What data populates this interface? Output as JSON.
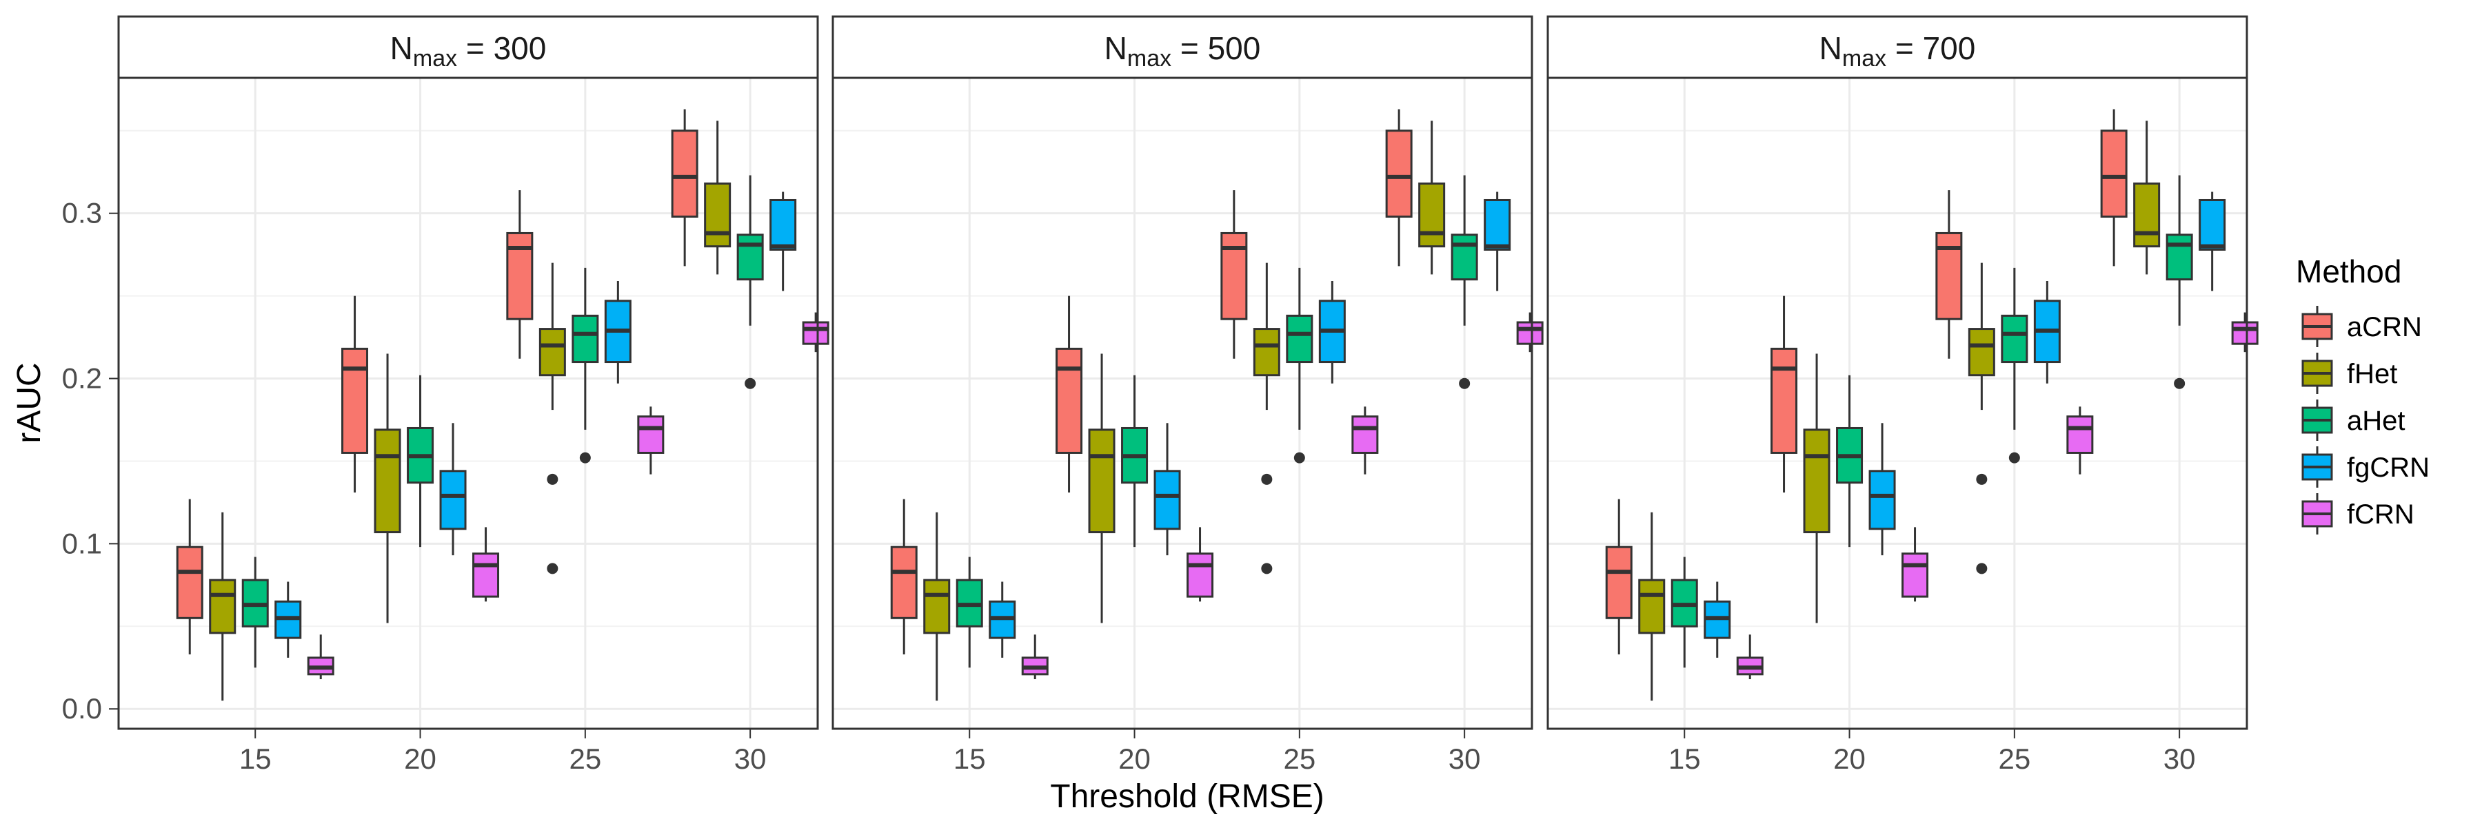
{
  "chart_data": {
    "type": "boxplot",
    "xlabel": "Threshold (RMSE)",
    "ylabel": "rAUC",
    "ylim": [
      -0.012,
      0.382
    ],
    "yticks": [
      0.0,
      0.1,
      0.2,
      0.3
    ],
    "ytick_labels": [
      "0.0",
      "0.1",
      "0.2",
      "0.3"
    ],
    "categories": [
      "15",
      "20",
      "25",
      "30"
    ],
    "legend": {
      "title": "Method",
      "position": "right",
      "entries": [
        "aCRN",
        "fHet",
        "aHet",
        "fgCRN",
        "fCRN"
      ]
    },
    "colors": {
      "aCRN": "#F8766D",
      "fHet": "#A3A500",
      "aHet": "#00BF7D",
      "fgCRN": "#00B0F6",
      "fCRN": "#E76BF3"
    },
    "panels": [
      {
        "strip_prefix": "N",
        "strip_sub": "max",
        "strip_suffix": " = 300"
      },
      {
        "strip_prefix": "N",
        "strip_sub": "max",
        "strip_suffix": " = 500"
      },
      {
        "strip_prefix": "N",
        "strip_sub": "max",
        "strip_suffix": " = 700"
      }
    ],
    "series": [
      {
        "name": "aCRN",
        "boxes": [
          {
            "x": "15",
            "min": 0.033,
            "q1": 0.055,
            "median": 0.083,
            "q3": 0.098,
            "max": 0.127,
            "outliers": []
          },
          {
            "x": "20",
            "min": 0.131,
            "q1": 0.155,
            "median": 0.206,
            "q3": 0.218,
            "max": 0.25,
            "outliers": []
          },
          {
            "x": "25",
            "min": 0.212,
            "q1": 0.236,
            "median": 0.279,
            "q3": 0.288,
            "max": 0.314,
            "outliers": []
          },
          {
            "x": "30",
            "min": 0.268,
            "q1": 0.298,
            "median": 0.322,
            "q3": 0.35,
            "max": 0.363,
            "outliers": []
          }
        ]
      },
      {
        "name": "fHet",
        "boxes": [
          {
            "x": "15",
            "min": 0.005,
            "q1": 0.046,
            "median": 0.069,
            "q3": 0.078,
            "max": 0.119,
            "outliers": []
          },
          {
            "x": "20",
            "min": 0.052,
            "q1": 0.107,
            "median": 0.153,
            "q3": 0.169,
            "max": 0.215,
            "outliers": []
          },
          {
            "x": "25",
            "min": 0.181,
            "q1": 0.202,
            "median": 0.22,
            "q3": 0.23,
            "max": 0.27,
            "outliers": [
              0.139,
              0.085
            ]
          },
          {
            "x": "30",
            "min": 0.263,
            "q1": 0.28,
            "median": 0.288,
            "q3": 0.318,
            "max": 0.356,
            "outliers": []
          }
        ]
      },
      {
        "name": "aHet",
        "boxes": [
          {
            "x": "15",
            "min": 0.025,
            "q1": 0.05,
            "median": 0.063,
            "q3": 0.078,
            "max": 0.092,
            "outliers": []
          },
          {
            "x": "20",
            "min": 0.098,
            "q1": 0.137,
            "median": 0.153,
            "q3": 0.17,
            "max": 0.202,
            "outliers": []
          },
          {
            "x": "25",
            "min": 0.169,
            "q1": 0.21,
            "median": 0.227,
            "q3": 0.238,
            "max": 0.267,
            "outliers": [
              0.152
            ]
          },
          {
            "x": "30",
            "min": 0.232,
            "q1": 0.26,
            "median": 0.281,
            "q3": 0.287,
            "max": 0.323,
            "outliers": [
              0.197
            ]
          }
        ]
      },
      {
        "name": "fgCRN",
        "boxes": [
          {
            "x": "15",
            "min": 0.031,
            "q1": 0.043,
            "median": 0.055,
            "q3": 0.065,
            "max": 0.077,
            "outliers": []
          },
          {
            "x": "20",
            "min": 0.093,
            "q1": 0.109,
            "median": 0.129,
            "q3": 0.144,
            "max": 0.173,
            "outliers": []
          },
          {
            "x": "25",
            "min": 0.197,
            "q1": 0.21,
            "median": 0.229,
            "q3": 0.247,
            "max": 0.259,
            "outliers": []
          },
          {
            "x": "30",
            "min": 0.253,
            "q1": 0.278,
            "median": 0.28,
            "q3": 0.308,
            "max": 0.313,
            "outliers": []
          }
        ]
      },
      {
        "name": "fCRN",
        "boxes": [
          {
            "x": "15",
            "min": 0.018,
            "q1": 0.021,
            "median": 0.025,
            "q3": 0.031,
            "max": 0.045,
            "outliers": []
          },
          {
            "x": "20",
            "min": 0.065,
            "q1": 0.068,
            "median": 0.087,
            "q3": 0.094,
            "max": 0.11,
            "outliers": []
          },
          {
            "x": "25",
            "min": 0.142,
            "q1": 0.155,
            "median": 0.17,
            "q3": 0.177,
            "max": 0.183,
            "outliers": []
          },
          {
            "x": "30",
            "min": 0.216,
            "q1": 0.221,
            "median": 0.23,
            "q3": 0.234,
            "max": 0.24,
            "outliers": []
          }
        ]
      }
    ]
  }
}
